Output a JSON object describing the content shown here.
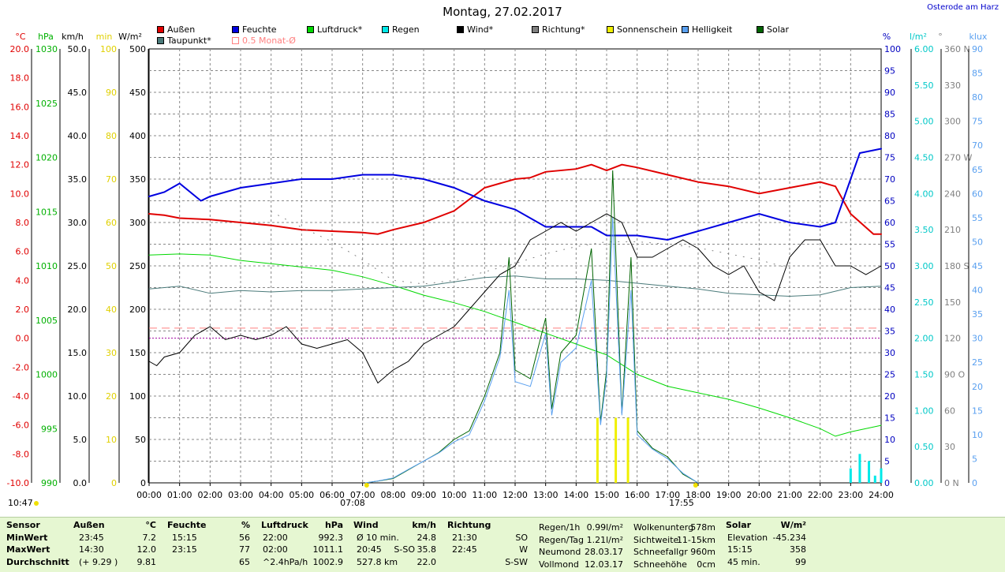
{
  "title": "Montag, 27.02.2017",
  "location": "Osterode am Harz",
  "legend": [
    {
      "label": "Außen",
      "color": "#e00000",
      "style": "fill"
    },
    {
      "label": "Feuchte",
      "color": "#0000e0",
      "style": "fill"
    },
    {
      "label": "Luftdruck*",
      "color": "#00d800",
      "style": "fill"
    },
    {
      "label": "Regen",
      "color": "#00e8e8",
      "style": "fill"
    },
    {
      "label": "Wind*",
      "color": "#000000",
      "style": "fill"
    },
    {
      "label": "Richtung*",
      "color": "#808080",
      "style": "fill"
    },
    {
      "label": "Sonnenschein",
      "color": "#f0f000",
      "style": "fill"
    },
    {
      "label": "Helligkeit",
      "color": "#5aa0f0",
      "style": "fill"
    },
    {
      "label": "Solar",
      "color": "#006400",
      "style": "fill"
    },
    {
      "label": "Taupunkt*",
      "color": "#4a7a7a",
      "style": "fill"
    },
    {
      "label": "0.5 Monat-Ø",
      "color": "#ff8080",
      "style": "outline"
    }
  ],
  "chart_data": {
    "type": "line",
    "x_range": [
      "00:00",
      "24:00"
    ],
    "x_ticks": [
      "00:00",
      "01:00",
      "02:00",
      "03:00",
      "04:00",
      "05:00",
      "06:00",
      "07:00",
      "08:00",
      "09:00",
      "10:00",
      "11:00",
      "12:00",
      "13:00",
      "14:00",
      "15:00",
      "16:00",
      "17:00",
      "18:00",
      "19:00",
      "20:00",
      "21:00",
      "22:00",
      "23:00",
      "24:00"
    ],
    "left_axes": [
      {
        "unit": "°C",
        "color": "#e00000",
        "ticks": [
          "20.0",
          "18.0",
          "16.0",
          "14.0",
          "12.0",
          "10.0",
          "8.0",
          "6.0",
          "4.0",
          "2.0",
          "0.0",
          "-2.0",
          "-4.0",
          "-6.0",
          "-8.0",
          "-10.0"
        ],
        "range": [
          -10,
          20
        ]
      },
      {
        "unit": "hPa",
        "color": "#00b000",
        "ticks": [
          "1030",
          "1025",
          "1020",
          "1015",
          "1010",
          "1005",
          "1000",
          "995",
          "990"
        ],
        "range": [
          990,
          1030
        ]
      },
      {
        "unit": "km/h",
        "color": "#000000",
        "ticks": [
          "50.0",
          "45.0",
          "40.0",
          "35.0",
          "30.0",
          "25.0",
          "20.0",
          "15.0",
          "10.0",
          "5.0",
          "0.0"
        ],
        "range": [
          0,
          50
        ]
      },
      {
        "unit": "min",
        "color": "#e0d000",
        "ticks": [
          "100",
          "90",
          "80",
          "70",
          "60",
          "50",
          "40",
          "30",
          "20",
          "10",
          "0"
        ],
        "range": [
          0,
          100
        ]
      },
      {
        "unit": "W/m²",
        "color": "#000000",
        "ticks": [
          "500",
          "450",
          "400",
          "350",
          "300",
          "250",
          "200",
          "150",
          "100",
          "50",
          "0"
        ],
        "range": [
          0,
          500
        ]
      }
    ],
    "right_axes": [
      {
        "unit": "%",
        "color": "#0000c0",
        "ticks": [
          "100",
          "95",
          "90",
          "85",
          "80",
          "75",
          "70",
          "65",
          "60",
          "55",
          "50",
          "45",
          "40",
          "35",
          "30",
          "25",
          "20",
          "15",
          "10",
          "5",
          "0"
        ],
        "range": [
          0,
          100
        ]
      },
      {
        "unit": "l/m²",
        "color": "#00c8c8",
        "ticks": [
          "6.00",
          "5.50",
          "5.00",
          "4.50",
          "4.00",
          "3.50",
          "3.00",
          "2.50",
          "2.00",
          "1.50",
          "1.00",
          "0.50",
          "0.00"
        ],
        "range": [
          0,
          6
        ]
      },
      {
        "unit": "°",
        "color": "#808080",
        "ticks": [
          "360 N",
          "330",
          "300",
          "270 W",
          "240",
          "210",
          "180 S",
          "150",
          "120",
          "90 O",
          "60",
          "30",
          "0 N"
        ],
        "range": [
          0,
          360
        ]
      },
      {
        "unit": "klux",
        "color": "#5aa0f0",
        "ticks": [
          "90",
          "85",
          "80",
          "75",
          "70",
          "65",
          "60",
          "55",
          "50",
          "45",
          "40",
          "35",
          "30",
          "25",
          "20",
          "15",
          "10",
          "5",
          "0"
        ],
        "range": [
          0,
          90
        ]
      }
    ],
    "series": [
      {
        "name": "Außen",
        "unit": "°C",
        "color": "#e00000",
        "x": [
          0,
          0.5,
          1,
          2,
          3,
          4,
          5,
          6,
          7,
          7.5,
          8,
          9,
          10,
          11,
          12,
          12.5,
          13,
          14,
          14.5,
          15,
          15.5,
          16,
          17,
          18,
          19,
          20,
          21,
          22,
          22.5,
          23,
          23.75,
          24
        ],
        "y": [
          8.6,
          8.5,
          8.3,
          8.2,
          8.0,
          7.8,
          7.5,
          7.4,
          7.3,
          7.2,
          7.5,
          8.0,
          8.8,
          10.4,
          11.0,
          11.1,
          11.5,
          11.7,
          12.0,
          11.6,
          12.0,
          11.8,
          11.3,
          10.8,
          10.5,
          10.0,
          10.4,
          10.8,
          10.5,
          8.6,
          7.2,
          7.2
        ]
      },
      {
        "name": "Feuchte",
        "unit": "%",
        "color": "#0000e0",
        "x": [
          0,
          0.5,
          1,
          1.7,
          2,
          3,
          4,
          5,
          6,
          7,
          8,
          9,
          10,
          11,
          12,
          13,
          14,
          14.5,
          15,
          15.5,
          16,
          17,
          18,
          19,
          20,
          21,
          22,
          22.5,
          23,
          23.3,
          24
        ],
        "y": [
          66,
          67,
          69,
          65,
          66,
          68,
          69,
          70,
          70,
          71,
          71,
          70,
          68,
          65,
          63,
          59,
          59,
          59,
          57,
          57,
          57,
          56,
          58,
          60,
          62,
          60,
          59,
          60,
          70,
          76,
          77
        ]
      },
      {
        "name": "Luftdruck*",
        "unit": "hPa",
        "color": "#00d800",
        "x": [
          0,
          1,
          2,
          3,
          4,
          5,
          6,
          7,
          8,
          9,
          10,
          11,
          12,
          13,
          14,
          15,
          16,
          17,
          18,
          19,
          20,
          21,
          22,
          22.5,
          23,
          23.5,
          24
        ],
        "y": [
          1011.0,
          1011.1,
          1011.0,
          1010.5,
          1010.2,
          1009.9,
          1009.6,
          1009.0,
          1008.2,
          1007.3,
          1006.6,
          1005.8,
          1004.8,
          1003.8,
          1002.8,
          1001.8,
          1000.0,
          998.9,
          998.3,
          997.7,
          996.9,
          996.0,
          995.0,
          994.3,
          994.7,
          995.0,
          995.3
        ]
      },
      {
        "name": "Taupunkt*",
        "unit": "°C",
        "color": "#4a7a7a",
        "x": [
          0,
          1,
          2,
          3,
          4,
          5,
          6,
          7,
          8,
          9,
          10,
          11,
          12,
          13,
          14,
          15,
          16,
          17,
          18,
          19,
          20,
          21,
          22,
          23,
          24
        ],
        "y": [
          3.4,
          3.6,
          3.1,
          3.3,
          3.2,
          3.3,
          3.3,
          3.4,
          3.5,
          3.6,
          3.9,
          4.2,
          4.3,
          4.1,
          4.1,
          4.0,
          3.8,
          3.6,
          3.4,
          3.1,
          3.0,
          2.9,
          3.0,
          3.5,
          3.6
        ]
      },
      {
        "name": "Wind*",
        "unit": "km/h",
        "color": "#000000",
        "x": [
          0,
          0.25,
          0.5,
          1,
          1.5,
          2,
          2.5,
          3,
          3.5,
          4,
          4.5,
          5,
          5.5,
          6,
          6.5,
          7,
          7.5,
          8,
          8.5,
          9,
          9.5,
          10,
          10.5,
          11,
          11.5,
          12,
          12.5,
          13,
          13.5,
          14,
          14.5,
          15,
          15.5,
          16,
          16.5,
          17,
          17.5,
          18,
          18.5,
          19,
          19.5,
          20,
          20.5,
          21,
          21.5,
          22,
          22.5,
          23,
          23.5,
          24
        ],
        "y": [
          14,
          13.5,
          14.5,
          15,
          17,
          18,
          16.5,
          17,
          16.5,
          17,
          18,
          16,
          15.5,
          16,
          16.5,
          15,
          11.5,
          13,
          14,
          16,
          17,
          18,
          20,
          22,
          24,
          25,
          28,
          29,
          30,
          29,
          30,
          31,
          30,
          26,
          26,
          27,
          28,
          27,
          25,
          24,
          25,
          22,
          21,
          26,
          28,
          28,
          25,
          25,
          24,
          25
        ]
      },
      {
        "name": "Richtung*",
        "unit": "°",
        "color": "#808080",
        "x": [
          4,
          5,
          6,
          7,
          8,
          9,
          10,
          11,
          12,
          13,
          14,
          15,
          16,
          17,
          18,
          19,
          20,
          21
        ],
        "y": [
          225,
          212,
          200,
          185,
          168,
          165,
          168,
          175,
          182,
          190,
          196,
          200,
          200,
          198,
          195,
          190,
          185,
          178
        ]
      },
      {
        "name": "Solar",
        "unit": "W/m²",
        "color": "#006400",
        "x": [
          7.1,
          7.5,
          8,
          8.5,
          9,
          9.5,
          10,
          10.5,
          11,
          11.5,
          11.8,
          12,
          12.5,
          13,
          13.2,
          13.5,
          14,
          14.5,
          14.8,
          15,
          15.2,
          15.5,
          15.8,
          16,
          16.5,
          17,
          17.5,
          18
        ],
        "y": [
          0,
          2,
          5,
          15,
          25,
          35,
          50,
          60,
          100,
          150,
          260,
          130,
          120,
          190,
          85,
          150,
          170,
          270,
          70,
          130,
          360,
          80,
          260,
          60,
          40,
          30,
          10,
          0
        ]
      },
      {
        "name": "Helligkeit",
        "unit": "klux",
        "color": "#5aa0f0",
        "x": [
          7.1,
          7.5,
          8,
          8.5,
          9,
          9.5,
          10,
          10.5,
          11,
          11.5,
          11.8,
          12,
          12.5,
          13,
          13.2,
          13.5,
          14,
          14.5,
          14.8,
          15,
          15.2,
          15.5,
          15.8,
          16,
          16.5,
          17,
          17.5,
          18
        ],
        "y": [
          0,
          0.4,
          1,
          2.8,
          4.5,
          6.2,
          8.5,
          10,
          17,
          26,
          40,
          21,
          20,
          31,
          14,
          25,
          28,
          42,
          12,
          22,
          55,
          14,
          40,
          10,
          7,
          5,
          2,
          0
        ]
      },
      {
        "name": "Regen",
        "unit": "l/m²",
        "color": "#00e8e8",
        "type": "bar",
        "x": [
          23.0,
          23.3,
          23.6,
          23.8,
          24.0
        ],
        "y": [
          0.2,
          0.4,
          0.3,
          0.1,
          0.2
        ]
      },
      {
        "name": "Sonnenschein",
        "unit": "min",
        "color": "#f0f000",
        "type": "bar",
        "x": [
          14.7,
          15.3,
          15.7
        ],
        "y": [
          15,
          15,
          15
        ]
      }
    ],
    "reference_lines": [
      {
        "name": "0.5 Monat-Ø",
        "color": "#ff8080",
        "style": "dashed",
        "y": 0.7,
        "unit": "°C"
      },
      {
        "color": "#a000a0",
        "style": "dotted",
        "y": 0.0,
        "unit": "°C"
      }
    ],
    "annotations": {
      "sunrise": "07:08",
      "sunset": "17:55",
      "time": "10:47"
    }
  },
  "footer": {
    "headers": {
      "sensor": "Sensor",
      "aussen": "Außen",
      "aussen_unit": "°C",
      "feuchte": "Feuchte",
      "feuchte_unit": "%",
      "luftdruck": "Luftdruck",
      "luftdruck_unit": "hPa",
      "wind": "Wind",
      "wind_unit": "km/h",
      "richtung": "Richtung",
      "solar": "Solar",
      "solar_unit": "W/m²"
    },
    "rows": [
      {
        "label": "MinWert",
        "a_t": "23:45",
        "a_v": "7.2",
        "f_t": "15:15",
        "f_v": "56",
        "l_t": "22:00",
        "l_v": "992.3",
        "w_t": "Ø 10 min.",
        "w_v": "24.8",
        "r_t": "21:30",
        "r_v": "SO",
        "x1": "Regen/1h",
        "x1v": "0.99l/m²",
        "x2": "Wolkenunterg",
        "x2v": "578m",
        "s_t": "Elevation",
        "s_v": "-45.234"
      },
      {
        "label": "MaxWert",
        "a_t": "14:30",
        "a_v": "12.0",
        "f_t": "23:15",
        "f_v": "77",
        "l_t": "02:00",
        "l_v": "1011.1",
        "w_t": "20:45",
        "w_d": "S-SO",
        "w_v": "35.8",
        "r_t": "22:45",
        "r_v": "W",
        "x1": "Regen/Tag",
        "x1v": "1.21l/m²",
        "x2": "Sichtweite",
        "x2v": "11-15km",
        "s_t": "15:15",
        "s_v": "358"
      },
      {
        "label": "Durchschnitt",
        "a_t": "(+ 9.29 )",
        "a_v": "9.81",
        "f_t": "",
        "f_v": "65",
        "l_t": "^2.4hPa/h",
        "l_v": "1002.9",
        "w_t": "527.8 km",
        "w_v": "22.0",
        "r_t": "",
        "r_v": "S-SW",
        "x1": "Neumond",
        "x1v": "28.03.17",
        "x2": "Schneefallgr",
        "x2v": "960m",
        "s_t": "45 min.",
        "s_v": "99"
      },
      {
        "label": "",
        "x1": "Vollmond",
        "x1v": "12.03.17",
        "x2": "Schneehöhe",
        "x2v": "0cm"
      }
    ]
  }
}
